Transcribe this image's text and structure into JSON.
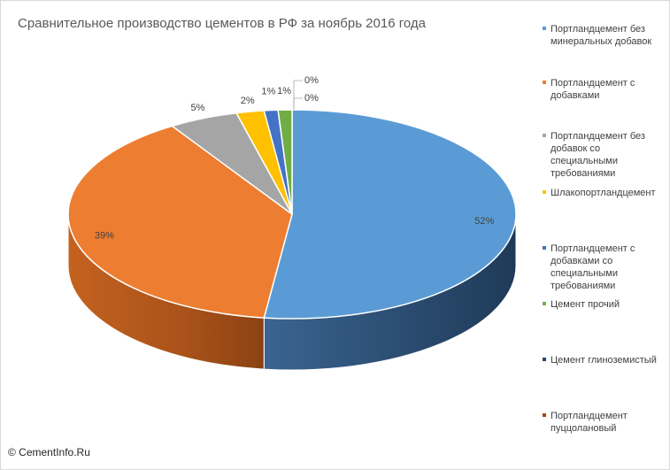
{
  "chart_data": {
    "type": "pie",
    "title": "Сравнительное производство цементов в РФ за ноябрь 2016 года",
    "legend_position": "right",
    "three_d": true,
    "slices": [
      {
        "label": "Портландцемент без минеральных добавок",
        "value": 52,
        "data_label": "52%",
        "color": "#5b9bd5"
      },
      {
        "label": "Портландцемент с добавками",
        "value": 39,
        "data_label": "39%",
        "color": "#ed7d31"
      },
      {
        "label": "Портландцемент без добавок со специальными требованиями",
        "value": 5,
        "data_label": "5%",
        "color": "#a5a5a5"
      },
      {
        "label": "Шлакопортландцемент",
        "value": 2,
        "data_label": "2%",
        "color": "#ffc000"
      },
      {
        "label": "Портландцемент с добавками со специальными требованиями",
        "value": 1,
        "data_label": "1%",
        "color": "#4472c4"
      },
      {
        "label": "Цемент прочий",
        "value": 1,
        "data_label": "1%",
        "color": "#70ad47"
      },
      {
        "label": "Цемент глиноземистый",
        "value": 0,
        "data_label": "0%",
        "color": "#264478"
      },
      {
        "label": "Портландцемент пуццолановый",
        "value": 0,
        "data_label": "0%",
        "color": "#9e480e"
      }
    ]
  },
  "footer": {
    "copyright": "© CementInfo.Ru"
  }
}
